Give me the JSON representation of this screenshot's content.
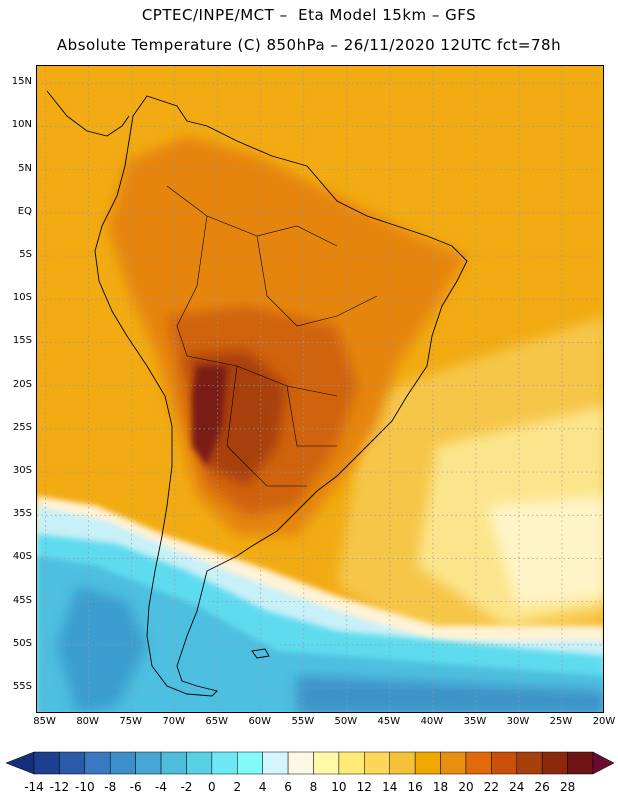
{
  "title_line1": "CPTEC/INPE/MCT –  Eta Model 15km – GFS",
  "title_line2": "Absolute Temperature (C) 850hPa – 26/11/2020 12UTC fct=78h",
  "lat_labels": [
    "15N",
    "10N",
    "5N",
    "EQ",
    "5S",
    "10S",
    "15S",
    "20S",
    "25S",
    "30S",
    "35S",
    "40S",
    "45S",
    "50S",
    "55S"
  ],
  "lon_labels": [
    "85W",
    "80W",
    "75W",
    "70W",
    "65W",
    "60W",
    "55W",
    "50W",
    "45W",
    "40W",
    "35W",
    "30W",
    "25W",
    "20W"
  ],
  "colorbar": {
    "labels": [
      "-14",
      "-12",
      "-10",
      "-8",
      "-6",
      "-4",
      "-2",
      "0",
      "2",
      "4",
      "6",
      "8",
      "10",
      "12",
      "14",
      "16",
      "18",
      "20",
      "22",
      "24",
      "26",
      "28"
    ],
    "colors": [
      "#1c3f8f",
      "#2a5aa8",
      "#3a78bf",
      "#3c8fc9",
      "#47a6d4",
      "#4fbcdc",
      "#58d0e6",
      "#6ee8f5",
      "#82fafa",
      "#d4f5fb",
      "#fff7e6",
      "#fff8a8",
      "#ffea78",
      "#fbd65a",
      "#f4c23a",
      "#f0a800",
      "#e88f10",
      "#e06a0a",
      "#c9500c",
      "#a63f0a",
      "#8a2a0a",
      "#6e1414"
    ],
    "end_colors": [
      "#14307a",
      "#6a0a2e"
    ]
  },
  "map": {
    "lat_range": [
      -58,
      17
    ],
    "lon_range": [
      -86,
      -20
    ],
    "grid": "dotted",
    "ocean_color": "#f2aa10",
    "land_base_color": "#ec9a12"
  }
}
